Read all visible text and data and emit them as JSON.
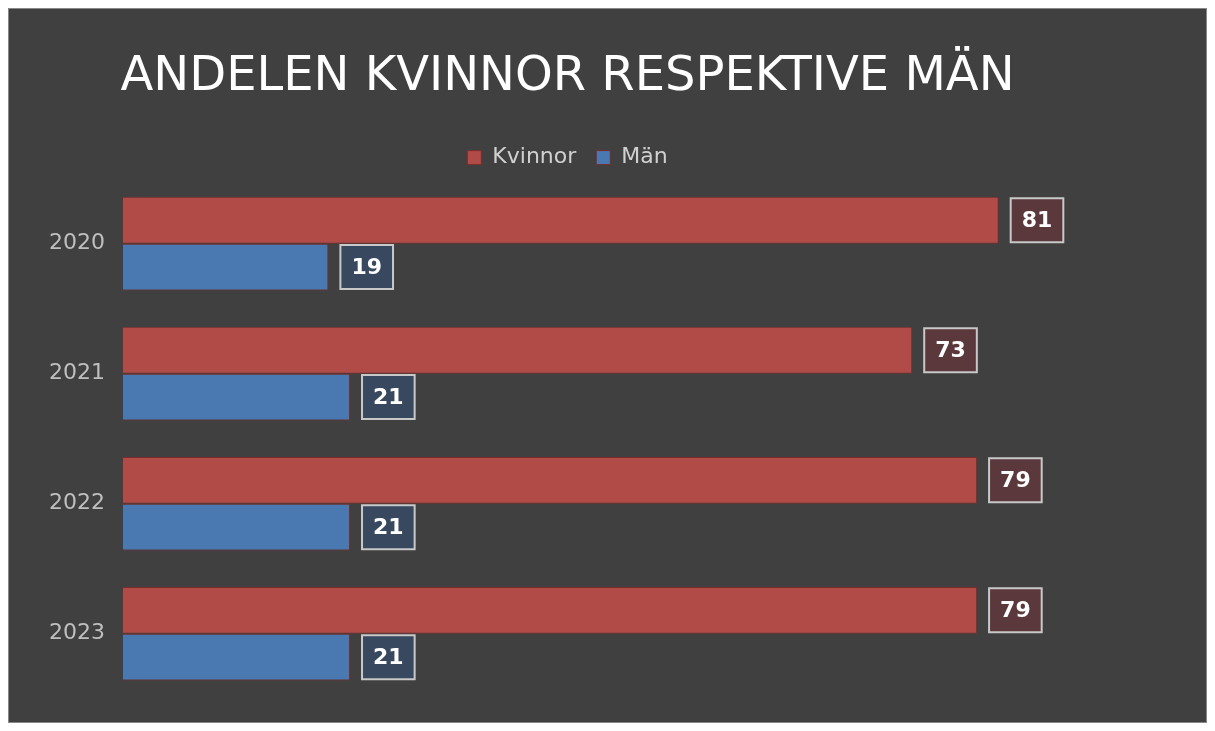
{
  "chart_data": {
    "type": "bar",
    "orientation": "horizontal",
    "title": "ANDELEN KVINNOR RESPEKTIVE MÄN",
    "categories": [
      "2020",
      "2021",
      "2022",
      "2023"
    ],
    "series": [
      {
        "name": "Kvinnor",
        "color": "#b04b48",
        "values": [
          81,
          73,
          79,
          79
        ]
      },
      {
        "name": "Män",
        "color": "#4a78b0",
        "values": [
          19,
          21,
          21,
          21
        ]
      }
    ],
    "data_labels": true,
    "legend": "top",
    "grid": false,
    "tick_labels": "y"
  }
}
